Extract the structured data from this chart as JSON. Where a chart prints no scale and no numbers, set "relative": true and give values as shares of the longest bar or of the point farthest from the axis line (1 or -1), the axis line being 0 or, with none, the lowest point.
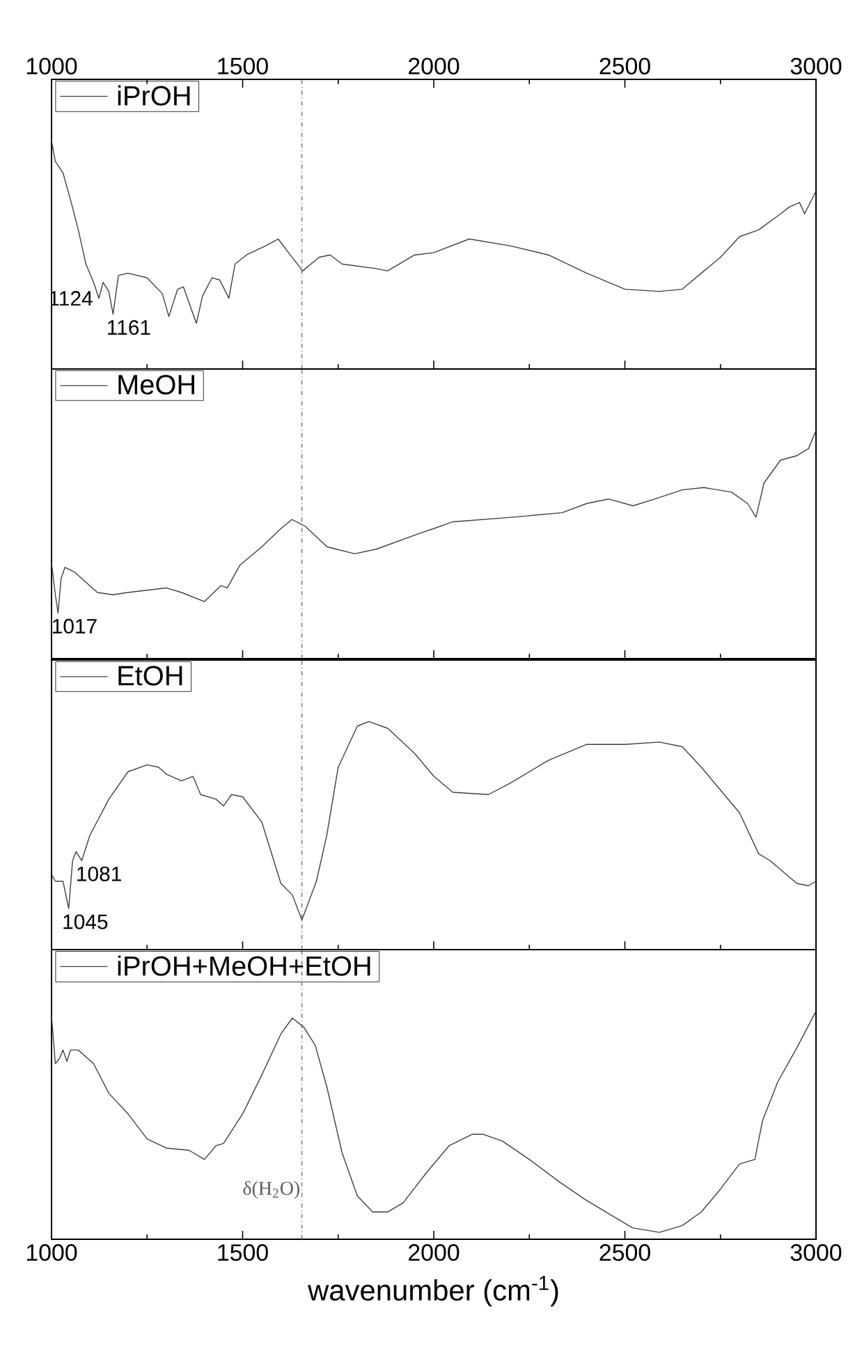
{
  "chart_data": [
    {
      "type": "line",
      "relative": true,
      "legend": "top left",
      "tick_labels": "x",
      "xlim": [
        1000,
        3000
      ],
      "x2lim": [
        1000,
        3000
      ],
      "x2ticks": [
        1000,
        {
          "value": 1250,
          "label": null
        },
        1500,
        {
          "value": 1750,
          "label": null
        },
        2000,
        {
          "value": 2250,
          "label": null
        },
        2500,
        {
          "value": 2750,
          "label": null
        },
        3000
      ],
      "x": [
        1000,
        1010,
        1030,
        1050,
        1070,
        1090,
        1110,
        1124,
        1135,
        1150,
        1161,
        1175,
        1200,
        1250,
        1290,
        1307,
        1330,
        1345,
        1379,
        1395,
        1420,
        1440,
        1464,
        1480,
        1510,
        1560,
        1593,
        1620,
        1657,
        1700,
        1729,
        1760,
        1850,
        1879,
        1950,
        2000,
        2093,
        2200,
        2300,
        2400,
        2500,
        2590,
        2650,
        2700,
        2750,
        2800,
        2850,
        2907,
        2930,
        2957,
        2970,
        3000
      ],
      "series": [
        {
          "name": "iPrOH",
          "color": "#404040",
          "values": [
            1,
            0.91,
            0.86,
            0.74,
            0.61,
            0.46,
            0.38,
            0.31,
            0.38,
            0.34,
            0.24,
            0.41,
            0.42,
            0.4,
            0.33,
            0.23,
            0.35,
            0.36,
            0.2,
            0.32,
            0.4,
            0.39,
            0.31,
            0.46,
            0.5,
            0.54,
            0.57,
            0.51,
            0.43,
            0.49,
            0.5,
            0.46,
            0.44,
            0.43,
            0.5,
            0.51,
            0.57,
            0.54,
            0.5,
            0.42,
            0.35,
            0.34,
            0.35,
            0.42,
            0.49,
            0.58,
            0.61,
            0.68,
            0.71,
            0.73,
            0.68,
            0.78
          ]
        }
      ],
      "annotations": [
        {
          "text": "1124",
          "x": 1124,
          "y": 0.31
        },
        {
          "text": "1161",
          "x": 1161,
          "y": 0.24
        }
      ],
      "ref_lines": [
        {
          "axis": "x",
          "value": 1655,
          "line_style": "dashdot",
          "color": "#606060"
        }
      ]
    },
    {
      "type": "line",
      "relative": true,
      "legend": "top left",
      "tick_labels": false,
      "xlim": [
        1000,
        3000
      ],
      "xticks": [
        {
          "value": 1000,
          "label": null
        },
        {
          "value": 1250,
          "label": null
        },
        {
          "value": 1500,
          "label": null
        },
        {
          "value": 1750,
          "label": null
        },
        {
          "value": 2000,
          "label": null
        },
        {
          "value": 2250,
          "label": null
        },
        {
          "value": 2500,
          "label": null
        },
        {
          "value": 2750,
          "label": null
        },
        {
          "value": 3000,
          "label": null
        }
      ],
      "x": [
        1000,
        1010,
        1017,
        1025,
        1035,
        1060,
        1100,
        1120,
        1160,
        1200,
        1250,
        1300,
        1340,
        1400,
        1443,
        1460,
        1493,
        1550,
        1600,
        1629,
        1664,
        1721,
        1793,
        1850,
        1964,
        2000,
        2050,
        2207,
        2336,
        2400,
        2457,
        2521,
        2579,
        2650,
        2707,
        2779,
        2821,
        2843,
        2864,
        2907,
        2950,
        2980,
        3000
      ],
      "series": [
        {
          "name": "MeOH",
          "color": "#404040",
          "values": [
            0.42,
            0.28,
            0.2,
            0.35,
            0.4,
            0.38,
            0.32,
            0.29,
            0.28,
            0.29,
            0.3,
            0.31,
            0.29,
            0.25,
            0.32,
            0.31,
            0.41,
            0.49,
            0.57,
            0.61,
            0.58,
            0.49,
            0.46,
            0.48,
            0.55,
            0.57,
            0.6,
            0.62,
            0.64,
            0.68,
            0.7,
            0.67,
            0.7,
            0.74,
            0.75,
            0.73,
            0.68,
            0.62,
            0.77,
            0.87,
            0.89,
            0.92,
            1
          ]
        }
      ],
      "annotations": [
        {
          "text": "1017",
          "x": 1017,
          "y": 0.2
        }
      ],
      "ref_lines": [
        {
          "axis": "x",
          "value": 1655,
          "line_style": "dashdot",
          "color": "#606060"
        }
      ]
    },
    {
      "type": "line",
      "relative": true,
      "legend": "top left",
      "tick_labels": false,
      "xlim": [
        1000,
        3000
      ],
      "xticks": [
        {
          "value": 1000,
          "label": null
        },
        {
          "value": 1250,
          "label": null
        },
        {
          "value": 1500,
          "label": null
        },
        {
          "value": 1750,
          "label": null
        },
        {
          "value": 2000,
          "label": null
        },
        {
          "value": 2250,
          "label": null
        },
        {
          "value": 2500,
          "label": null
        },
        {
          "value": 2750,
          "label": null
        },
        {
          "value": 3000,
          "label": null
        }
      ],
      "x": [
        1000,
        1010,
        1030,
        1045,
        1055,
        1064,
        1079,
        1100,
        1150,
        1200,
        1250,
        1280,
        1300,
        1340,
        1370,
        1390,
        1430,
        1450,
        1471,
        1500,
        1550,
        1600,
        1630,
        1655,
        1693,
        1720,
        1750,
        1800,
        1830,
        1880,
        1950,
        2000,
        2050,
        2143,
        2200,
        2300,
        2400,
        2500,
        2590,
        2650,
        2700,
        2750,
        2800,
        2850,
        2880,
        2950,
        2980,
        3000
      ],
      "series": [
        {
          "name": "EtOH",
          "color": "#404040",
          "values": [
            0.33,
            0.3,
            0.3,
            0.18,
            0.39,
            0.43,
            0.39,
            0.5,
            0.66,
            0.78,
            0.81,
            0.8,
            0.77,
            0.74,
            0.76,
            0.68,
            0.66,
            0.63,
            0.68,
            0.67,
            0.56,
            0.29,
            0.24,
            0.13,
            0.3,
            0.5,
            0.8,
            0.98,
            1,
            0.97,
            0.86,
            0.76,
            0.69,
            0.68,
            0.73,
            0.83,
            0.9,
            0.9,
            0.91,
            0.89,
            0.8,
            0.7,
            0.6,
            0.42,
            0.39,
            0.29,
            0.28,
            0.3
          ]
        }
      ],
      "annotations": [
        {
          "text": "1045",
          "x": 1045,
          "y": 0.18
        },
        {
          "text": "1081",
          "x": 1081,
          "y": 0.39
        }
      ],
      "ref_lines": [
        {
          "axis": "x",
          "value": 1655,
          "line_style": "dashdot",
          "color": "#606060"
        }
      ]
    },
    {
      "type": "line",
      "relative": true,
      "legend": "top left",
      "tick_labels": "x",
      "xlim": [
        1000,
        3000
      ],
      "xticks": [
        1000,
        {
          "value": 1250,
          "label": null
        },
        1500,
        {
          "value": 1750,
          "label": null
        },
        2000,
        {
          "value": 2250,
          "label": null
        },
        2500,
        {
          "value": 2750,
          "label": null
        },
        3000
      ],
      "xlabel": "wavenumber (cm$^{-1}$)",
      "x": [
        1000,
        1010,
        1020,
        1030,
        1040,
        1050,
        1070,
        1090,
        1110,
        1150,
        1200,
        1250,
        1300,
        1360,
        1400,
        1430,
        1450,
        1500,
        1550,
        1600,
        1630,
        1660,
        1690,
        1720,
        1760,
        1800,
        1840,
        1880,
        1920,
        1980,
        2040,
        2100,
        2130,
        2180,
        2250,
        2330,
        2400,
        2460,
        2520,
        2590,
        2650,
        2700,
        2750,
        2800,
        2840,
        2860,
        2900,
        2950,
        3000
      ],
      "series": [
        {
          "name": "iPrOH+MeOH+EtOH",
          "color": "#404040",
          "values": [
            0.98,
            0.77,
            0.79,
            0.83,
            0.78,
            0.83,
            0.83,
            0.8,
            0.77,
            0.64,
            0.55,
            0.44,
            0.4,
            0.39,
            0.35,
            0.41,
            0.42,
            0.55,
            0.72,
            0.9,
            0.97,
            0.93,
            0.85,
            0.67,
            0.38,
            0.19,
            0.12,
            0.12,
            0.16,
            0.29,
            0.41,
            0.46,
            0.46,
            0.43,
            0.35,
            0.25,
            0.17,
            0.11,
            0.05,
            0.03,
            0.06,
            0.12,
            0.22,
            0.33,
            0.35,
            0.52,
            0.69,
            0.84,
            1
          ]
        }
      ],
      "ref_lines": [
        {
          "axis": "x",
          "value": 1655,
          "line_style": "dashdot",
          "color": "#606060",
          "label": "δ(H$_{2}$O)"
        }
      ]
    }
  ]
}
